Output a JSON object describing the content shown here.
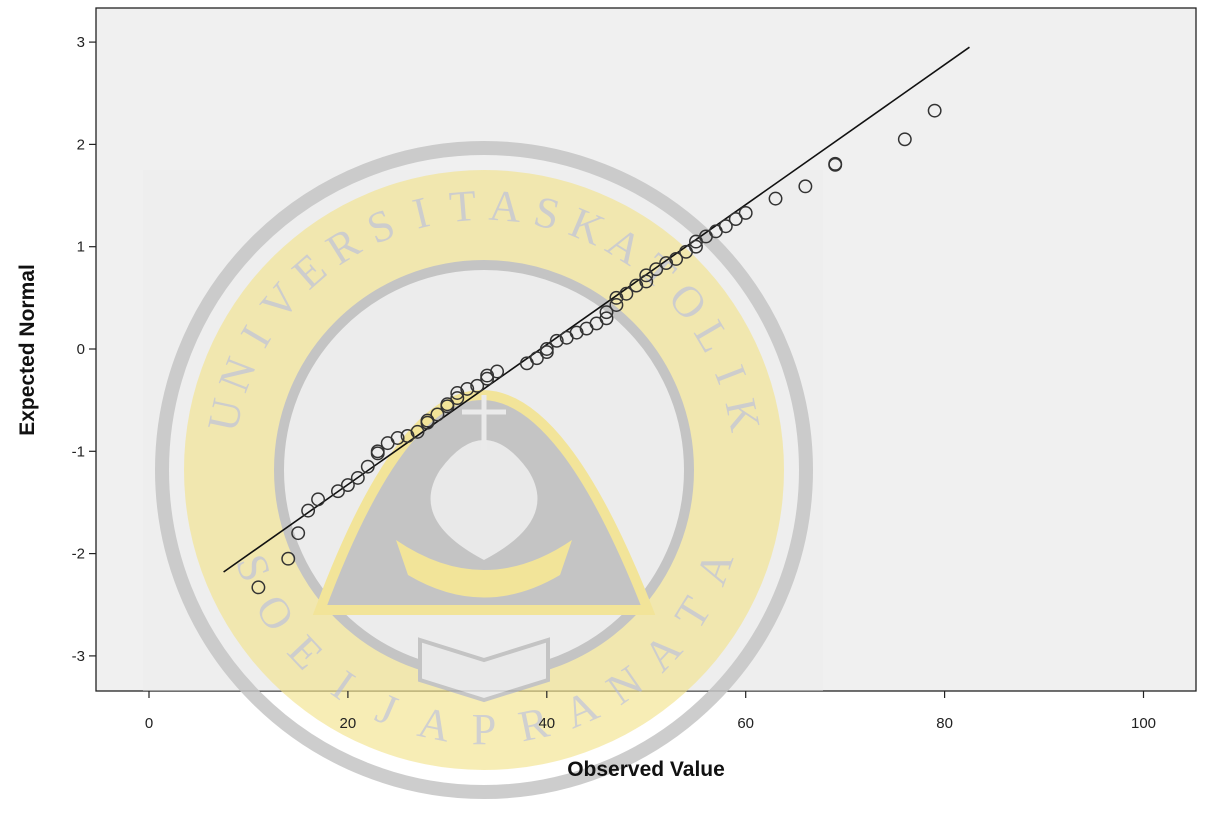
{
  "chart_data": {
    "type": "scatter",
    "title": "",
    "xlabel": "Observed Value",
    "ylabel": "Expected Normal",
    "xlim": [
      -5,
      105
    ],
    "ylim": [
      -3.35,
      3.35
    ],
    "xticks": [
      0,
      20,
      40,
      60,
      80,
      100
    ],
    "yticks": [
      3,
      2,
      1,
      0,
      -1,
      -2,
      -3
    ],
    "grid": false,
    "legend": "none",
    "marker": "open-circle",
    "background_color": "#f0f0f0",
    "series": [
      {
        "x": [
          11,
          14,
          15,
          16,
          17,
          19,
          20,
          21,
          22,
          23,
          23,
          24,
          25,
          26,
          27,
          28,
          28,
          29,
          30,
          30,
          31,
          31,
          32,
          33,
          34,
          34,
          35,
          38,
          39,
          40,
          40,
          41,
          42,
          43,
          44,
          45,
          46,
          46,
          47,
          47,
          48,
          49,
          50,
          50,
          51,
          52,
          53,
          54,
          55,
          55,
          56,
          57,
          58,
          59,
          60,
          63,
          66,
          69,
          69,
          76,
          79
        ],
        "y": [
          -2.33,
          -2.05,
          -1.8,
          -1.58,
          -1.47,
          -1.39,
          -1.33,
          -1.26,
          -1.15,
          -1.02,
          -1.0,
          -0.92,
          -0.87,
          -0.85,
          -0.81,
          -0.72,
          -0.7,
          -0.64,
          -0.56,
          -0.54,
          -0.48,
          -0.43,
          -0.39,
          -0.36,
          -0.29,
          -0.26,
          -0.22,
          -0.14,
          -0.09,
          -0.03,
          0.0,
          0.08,
          0.11,
          0.16,
          0.2,
          0.25,
          0.3,
          0.36,
          0.43,
          0.5,
          0.54,
          0.62,
          0.66,
          0.72,
          0.78,
          0.84,
          0.88,
          0.95,
          1.0,
          1.05,
          1.1,
          1.15,
          1.2,
          1.27,
          1.33,
          1.47,
          1.59,
          1.8,
          1.81,
          2.05,
          2.33
        ]
      }
    ],
    "reference_line": {
      "x": [
        7.5,
        82.5
      ],
      "y": [
        -2.18,
        2.95
      ]
    }
  },
  "watermark": {
    "top_letters": [
      "U",
      "N",
      "I",
      "V",
      "E",
      "R",
      "S",
      "I",
      "T",
      "A",
      "S",
      "K",
      "A",
      "T",
      "O",
      "L",
      "I",
      "K"
    ],
    "bottom_letters": [
      "S",
      "O",
      "E",
      "I",
      "J",
      "A",
      "P",
      "R",
      "A",
      "N",
      "A",
      "T",
      "A"
    ],
    "colors": {
      "gold": "#f3e38b",
      "gray": "#bfbfbf",
      "light": "#e6e6e6"
    }
  }
}
